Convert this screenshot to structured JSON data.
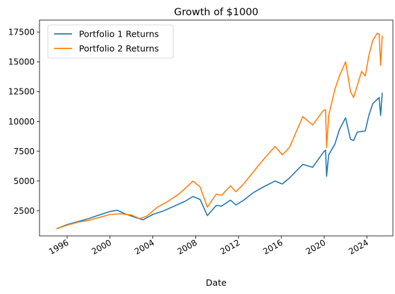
{
  "chart_data": {
    "type": "line",
    "title": "Growth of $1000",
    "xlabel": "Date",
    "ylabel": "",
    "xlim": [
      "1993-06-01",
      "2026-06-01"
    ],
    "ylim": [
      400,
      18500
    ],
    "x_ticks": [
      {
        "date": "1996-01-01",
        "label": "1996"
      },
      {
        "date": "2000-01-01",
        "label": "2000"
      },
      {
        "date": "2004-01-01",
        "label": "2004"
      },
      {
        "date": "2008-01-01",
        "label": "2008"
      },
      {
        "date": "2012-01-01",
        "label": "2012"
      },
      {
        "date": "2016-01-01",
        "label": "2016"
      },
      {
        "date": "2020-01-01",
        "label": "2020"
      },
      {
        "date": "2024-01-01",
        "label": "2024"
      }
    ],
    "y_ticks": [
      {
        "value": 2500,
        "label": "2500"
      },
      {
        "value": 5000,
        "label": "5000"
      },
      {
        "value": 7500,
        "label": "7500"
      },
      {
        "value": 10000,
        "label": "10000"
      },
      {
        "value": 12500,
        "label": "12500"
      },
      {
        "value": 15000,
        "label": "15000"
      },
      {
        "value": 17500,
        "label": "17500"
      }
    ],
    "grid": false,
    "legend_position": "upper-left",
    "series": [
      {
        "name": "Portfolio 1 Returns",
        "color": "#1f77b4",
        "points": [
          [
            "1995-01-01",
            1000
          ],
          [
            "1996-01-01",
            1350
          ],
          [
            "1997-01-01",
            1600
          ],
          [
            "1998-01-01",
            1850
          ],
          [
            "1999-01-01",
            2150
          ],
          [
            "2000-01-01",
            2450
          ],
          [
            "2000-09-01",
            2550
          ],
          [
            "2001-06-01",
            2250
          ],
          [
            "2002-07-01",
            1900
          ],
          [
            "2003-02-01",
            1750
          ],
          [
            "2004-01-01",
            2200
          ],
          [
            "2005-01-01",
            2500
          ],
          [
            "2006-01-01",
            2900
          ],
          [
            "2007-01-01",
            3300
          ],
          [
            "2007-10-01",
            3700
          ],
          [
            "2008-06-01",
            3450
          ],
          [
            "2009-02-01",
            2100
          ],
          [
            "2009-12-01",
            2950
          ],
          [
            "2010-06-01",
            2900
          ],
          [
            "2011-04-01",
            3400
          ],
          [
            "2011-10-01",
            3000
          ],
          [
            "2012-06-01",
            3350
          ],
          [
            "2013-06-01",
            4050
          ],
          [
            "2014-06-01",
            4550
          ],
          [
            "2015-06-01",
            5000
          ],
          [
            "2016-02-01",
            4750
          ],
          [
            "2016-10-01",
            5250
          ],
          [
            "2018-01-01",
            6400
          ],
          [
            "2018-12-01",
            6150
          ],
          [
            "2019-12-01",
            7400
          ],
          [
            "2020-02-15",
            7600
          ],
          [
            "2020-03-23",
            5400
          ],
          [
            "2020-06-01",
            7200
          ],
          [
            "2020-12-31",
            8100
          ],
          [
            "2021-06-01",
            9300
          ],
          [
            "2021-12-31",
            10300
          ],
          [
            "2022-06-15",
            8500
          ],
          [
            "2022-09-30",
            8400
          ],
          [
            "2023-01-31",
            9100
          ],
          [
            "2023-10-31",
            9200
          ],
          [
            "2024-03-01",
            10500
          ],
          [
            "2024-07-15",
            11500
          ],
          [
            "2025-02-15",
            12000
          ],
          [
            "2025-04-08",
            10500
          ],
          [
            "2025-06-01",
            12400
          ]
        ]
      },
      {
        "name": "Portfolio 2 Returns",
        "color": "#ff7f0e",
        "points": [
          [
            "1995-01-01",
            1000
          ],
          [
            "1996-01-01",
            1300
          ],
          [
            "1997-01-01",
            1550
          ],
          [
            "1998-01-01",
            1700
          ],
          [
            "1999-01-01",
            1950
          ],
          [
            "2000-01-01",
            2200
          ],
          [
            "2001-01-01",
            2250
          ],
          [
            "2002-01-01",
            2150
          ],
          [
            "2002-10-01",
            1850
          ],
          [
            "2003-06-01",
            2050
          ],
          [
            "2004-06-01",
            2800
          ],
          [
            "2005-06-01",
            3300
          ],
          [
            "2006-06-01",
            3900
          ],
          [
            "2007-06-01",
            4700
          ],
          [
            "2007-10-01",
            5000
          ],
          [
            "2008-06-01",
            4500
          ],
          [
            "2009-02-01",
            2800
          ],
          [
            "2009-12-01",
            3900
          ],
          [
            "2010-06-01",
            3800
          ],
          [
            "2011-04-01",
            4600
          ],
          [
            "2011-10-01",
            4100
          ],
          [
            "2012-06-01",
            4700
          ],
          [
            "2013-06-01",
            5800
          ],
          [
            "2014-06-01",
            6900
          ],
          [
            "2015-06-01",
            7900
          ],
          [
            "2016-02-01",
            7200
          ],
          [
            "2016-10-01",
            7800
          ],
          [
            "2018-01-01",
            10400
          ],
          [
            "2018-12-01",
            9700
          ],
          [
            "2019-12-01",
            10900
          ],
          [
            "2020-02-15",
            11000
          ],
          [
            "2020-03-23",
            7800
          ],
          [
            "2020-06-01",
            10500
          ],
          [
            "2020-12-31",
            12700
          ],
          [
            "2021-06-01",
            13800
          ],
          [
            "2021-12-31",
            15000
          ],
          [
            "2022-06-15",
            12500
          ],
          [
            "2022-09-30",
            12000
          ],
          [
            "2023-01-31",
            13000
          ],
          [
            "2023-06-30",
            14200
          ],
          [
            "2023-10-31",
            13800
          ],
          [
            "2024-03-01",
            15500
          ],
          [
            "2024-07-15",
            16800
          ],
          [
            "2024-12-15",
            17400
          ],
          [
            "2025-02-15",
            17300
          ],
          [
            "2025-04-08",
            14700
          ],
          [
            "2025-06-01",
            17200
          ]
        ]
      }
    ]
  }
}
